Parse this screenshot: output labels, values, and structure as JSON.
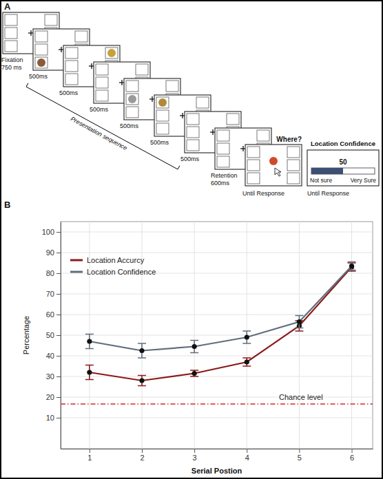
{
  "diagram": {
    "panel_labels": [
      "A",
      "B"
    ],
    "fixation": {
      "label": "Fixation",
      "duration": "750 ms"
    },
    "presentation": {
      "label": "Presentation sequence",
      "durations": [
        "500ms",
        "500ms",
        "500ms",
        "500ms",
        "500ms",
        "500ms"
      ]
    },
    "retention": {
      "label": "Retention",
      "duration": "600ms"
    },
    "probe": {
      "prompt": "Where?",
      "duration": "Until Response"
    },
    "confidence": {
      "title": "Location Confidence",
      "low": "Not sure",
      "high": "Very Sure",
      "value": 50,
      "duration": "Until Response"
    }
  },
  "chart_data": {
    "type": "line",
    "x": [
      1,
      2,
      3,
      4,
      5,
      6
    ],
    "xlim": [
      0.45,
      6.4
    ],
    "xticks": [
      1,
      2,
      3,
      4,
      5,
      6
    ],
    "ylim": [
      -5,
      105
    ],
    "yticks": [
      10,
      20,
      30,
      40,
      50,
      60,
      70,
      80,
      90,
      100
    ],
    "x_label": "Serial Postion",
    "y_label": "Percentage",
    "grid": true,
    "legend": "upper left",
    "marker": "circle",
    "series": [
      {
        "name": "Location Accurcy",
        "color": "#8b1a1a",
        "values": [
          32,
          28,
          31.5,
          37,
          54.5,
          83
        ],
        "errors": [
          3.5,
          2.5,
          1.5,
          2,
          2.5,
          2
        ]
      },
      {
        "name": "Location Confidence",
        "color": "#5f6e7d",
        "values": [
          47,
          42.5,
          44.5,
          49,
          56.5,
          83.5
        ],
        "errors": [
          3.5,
          3.5,
          3,
          3,
          3,
          2
        ]
      }
    ],
    "annotations": [
      {
        "text": "Chance level",
        "y": 16.67,
        "color": "#d62728",
        "line_style": "dashdot"
      }
    ]
  }
}
